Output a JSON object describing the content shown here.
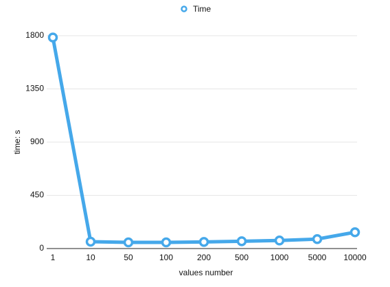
{
  "chart_data": {
    "type": "line",
    "x_label": "values number",
    "y_label": "time:  s",
    "categories": [
      "1",
      "10",
      "50",
      "100",
      "200",
      "500",
      "1000",
      "5000",
      "10000"
    ],
    "series": [
      {
        "name": "Time",
        "color": "#45a8ea",
        "values": [
          1785,
          58,
          52,
          52,
          56,
          62,
          68,
          80,
          138
        ]
      }
    ],
    "ylim": [
      0,
      1800
    ],
    "yticks": [
      0,
      450,
      900,
      1350,
      1800
    ],
    "grid": true,
    "legend": "top"
  }
}
